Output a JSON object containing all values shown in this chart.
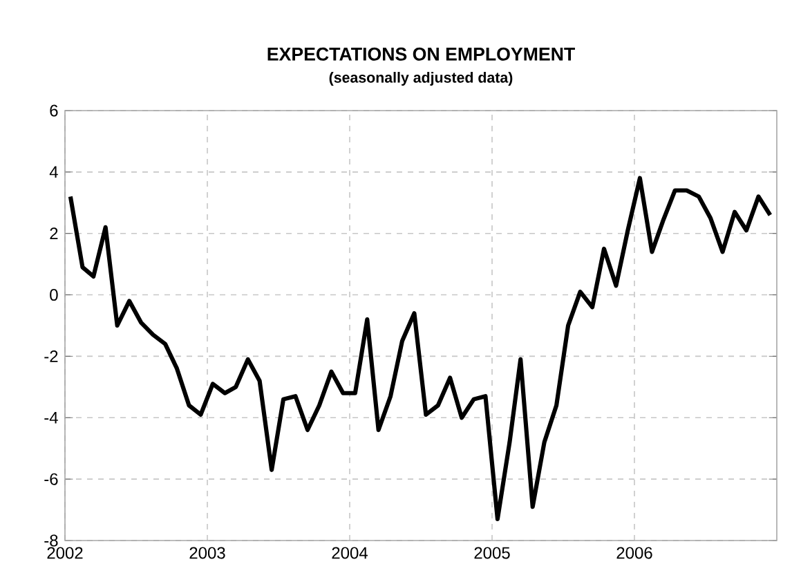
{
  "chart_data": {
    "type": "line",
    "title": "EXPECTATIONS ON EMPLOYMENT",
    "subtitle": "(seasonally adjusted data)",
    "x": [
      "2002-01-15",
      "2002-02-15",
      "2002-03-15",
      "2002-04-15",
      "2002-05-15",
      "2002-06-15",
      "2002-07-15",
      "2002-08-15",
      "2002-09-15",
      "2002-10-15",
      "2002-11-15",
      "2002-12-15",
      "2003-01-15",
      "2003-02-15",
      "2003-03-15",
      "2003-04-15",
      "2003-05-15",
      "2003-06-15",
      "2003-07-15",
      "2003-08-15",
      "2003-09-15",
      "2003-10-15",
      "2003-11-15",
      "2003-12-15",
      "2004-01-15",
      "2004-02-15",
      "2004-03-15",
      "2004-04-15",
      "2004-05-15",
      "2004-06-15",
      "2004-07-15",
      "2004-08-15",
      "2004-09-15",
      "2004-10-15",
      "2004-11-15",
      "2004-12-15",
      "2005-01-15",
      "2005-02-15",
      "2005-03-15",
      "2005-04-15",
      "2005-05-15",
      "2005-06-15",
      "2005-07-15",
      "2005-08-15",
      "2005-09-15",
      "2005-10-15",
      "2005-11-15",
      "2005-12-15",
      "2006-01-15",
      "2006-02-15",
      "2006-03-15",
      "2006-04-15",
      "2006-05-15",
      "2006-06-15",
      "2006-07-15",
      "2006-08-15",
      "2006-09-15",
      "2006-10-15",
      "2006-11-15",
      "2006-12-15"
    ],
    "series": [
      {
        "color": "#000000",
        "values": [
          3.2,
          0.9,
          0.6,
          2.2,
          -1.0,
          -0.2,
          -0.9,
          -1.3,
          -1.6,
          -2.4,
          -3.6,
          -3.9,
          -2.9,
          -3.2,
          -3.0,
          -2.1,
          -2.8,
          -5.7,
          -3.4,
          -3.3,
          -4.4,
          -3.6,
          -2.5,
          -3.2,
          -3.2,
          -0.8,
          -4.4,
          -3.3,
          -1.5,
          -0.6,
          -3.9,
          -3.6,
          -2.7,
          -4.0,
          -3.4,
          -3.3,
          -7.3,
          -4.8,
          -2.1,
          -6.9,
          -4.8,
          -3.6,
          -1.0,
          0.1,
          -0.4,
          1.5,
          0.3,
          2.1,
          3.8,
          1.4,
          2.4,
          3.4,
          3.4,
          3.2,
          2.5,
          1.4,
          2.7,
          2.1,
          3.2,
          2.6
        ]
      }
    ],
    "xlim": [
      "2002",
      "2007"
    ],
    "xticks": [
      {
        "value": "2002",
        "label": "2002"
      },
      {
        "value": "2003",
        "label": "2003"
      },
      {
        "value": "2004",
        "label": "2004"
      },
      {
        "value": "2005",
        "label": "2005"
      },
      {
        "value": "2006",
        "label": "2006"
      }
    ],
    "ylim": [
      -8,
      6
    ],
    "yticks": [
      -8,
      -6,
      -4,
      -2,
      0,
      2,
      4,
      6
    ],
    "grid": true,
    "marker": "none",
    "line_style": "solid"
  }
}
